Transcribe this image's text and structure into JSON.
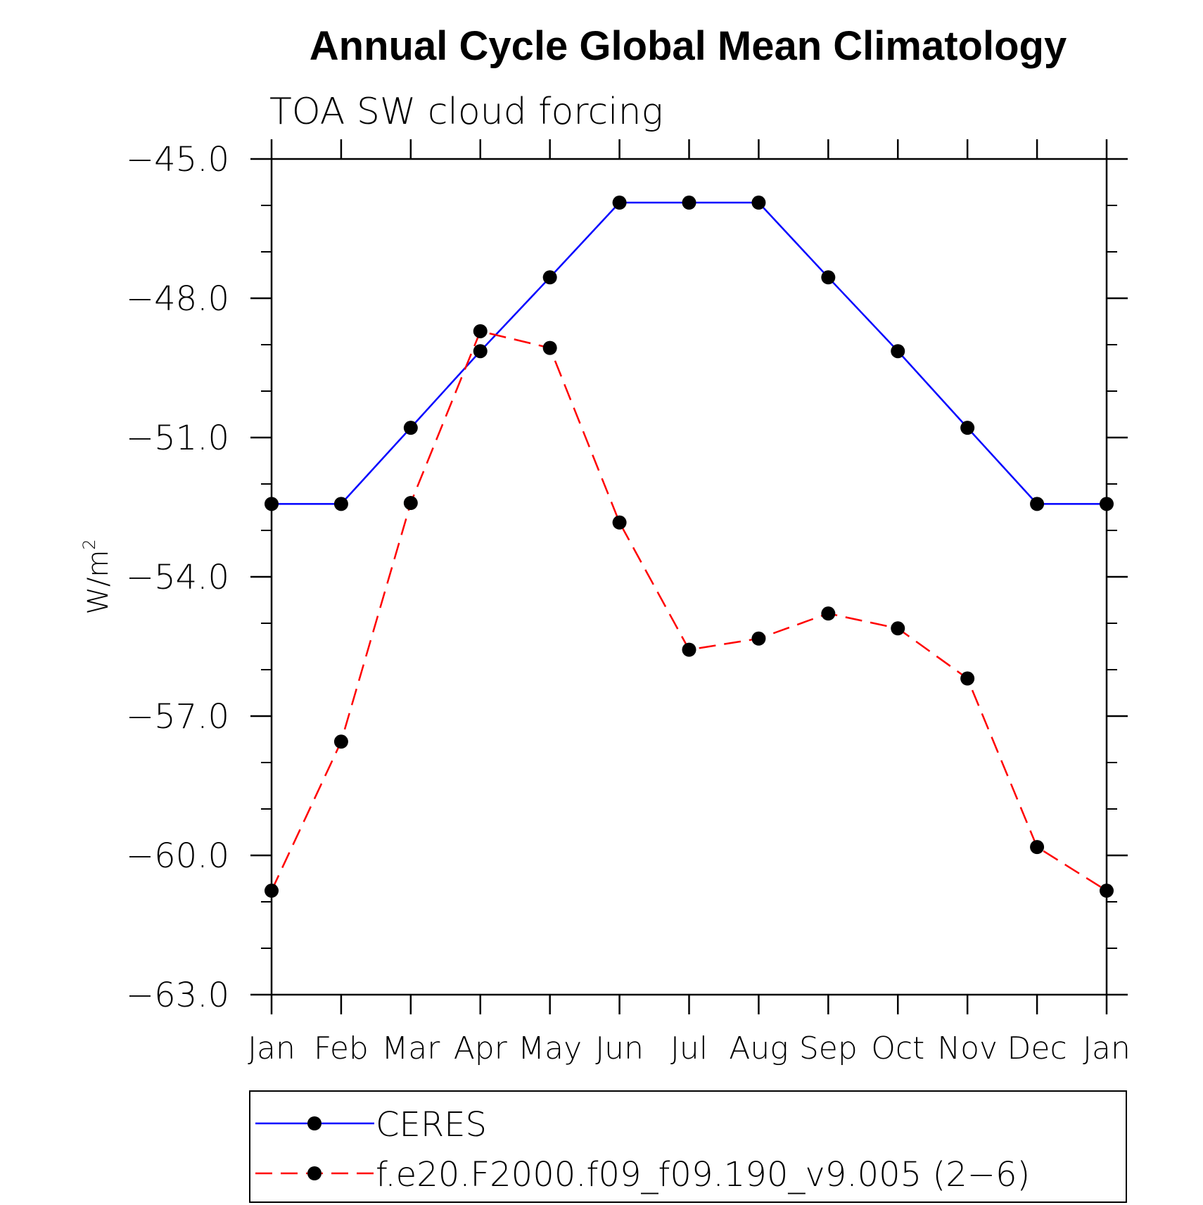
{
  "chart_data": {
    "type": "line",
    "title": "Annual Cycle Global Mean Climatology",
    "subtitle": "TOA SW cloud forcing",
    "ylabel": "W/m",
    "ylabel_sup": "2",
    "xlabel": "",
    "categories": [
      "Jan",
      "Feb",
      "Mar",
      "Apr",
      "May",
      "Jun",
      "Jul",
      "Aug",
      "Sep",
      "Oct",
      "Nov",
      "Dec",
      "Jan"
    ],
    "ylim": [
      -63.0,
      -45.0
    ],
    "yticks": [
      -45.0,
      -48.0,
      -51.0,
      -54.0,
      -57.0,
      -60.0,
      -63.0
    ],
    "ytick_labels": [
      "−45.0",
      "−48.0",
      "−51.0",
      "−54.0",
      "−57.0",
      "−60.0",
      "−63.0"
    ],
    "y_minor_step": 1.0,
    "grid": false,
    "legend_position": "bottom",
    "series": [
      {
        "name": "CERES",
        "color": "#0000ff",
        "line_style": "solid",
        "marker": "filled-circle",
        "marker_color": "#000000",
        "values": [
          -52.43,
          -52.43,
          -50.79,
          -49.14,
          -47.55,
          -45.94,
          -45.94,
          -45.94,
          -47.55,
          -49.14,
          -50.79,
          -52.43,
          -52.43
        ]
      },
      {
        "name": "f.e20.F2000.f09_f09.190_v9.005 (2−6)",
        "color": "#ff0000",
        "line_style": "dashed",
        "marker": "filled-circle",
        "marker_color": "#000000",
        "values": [
          -60.76,
          -57.55,
          -52.41,
          -48.71,
          -49.07,
          -52.83,
          -55.57,
          -55.33,
          -54.79,
          -55.11,
          -56.19,
          -59.82,
          -60.76
        ]
      }
    ]
  }
}
